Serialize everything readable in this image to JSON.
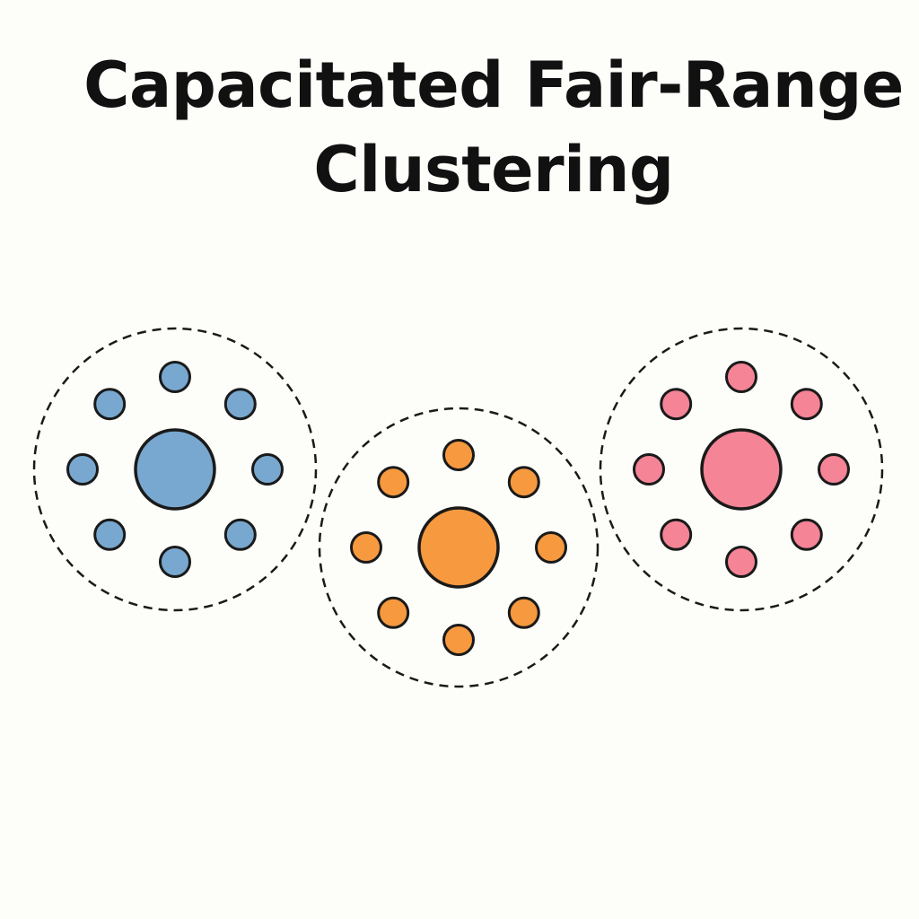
{
  "title": {
    "line1": "Capacitated Fair-Range",
    "line2": "Clustering"
  },
  "clusters": [
    {
      "name": "blue",
      "color": "#78a8cf",
      "members": 8
    },
    {
      "name": "orange",
      "color": "#f6993f",
      "members": 8
    },
    {
      "name": "pink",
      "color": "#f48496",
      "members": 8
    }
  ],
  "colors": {
    "background": "#fdfdfa",
    "outline": "#1a1a1a",
    "text": "#111111"
  }
}
